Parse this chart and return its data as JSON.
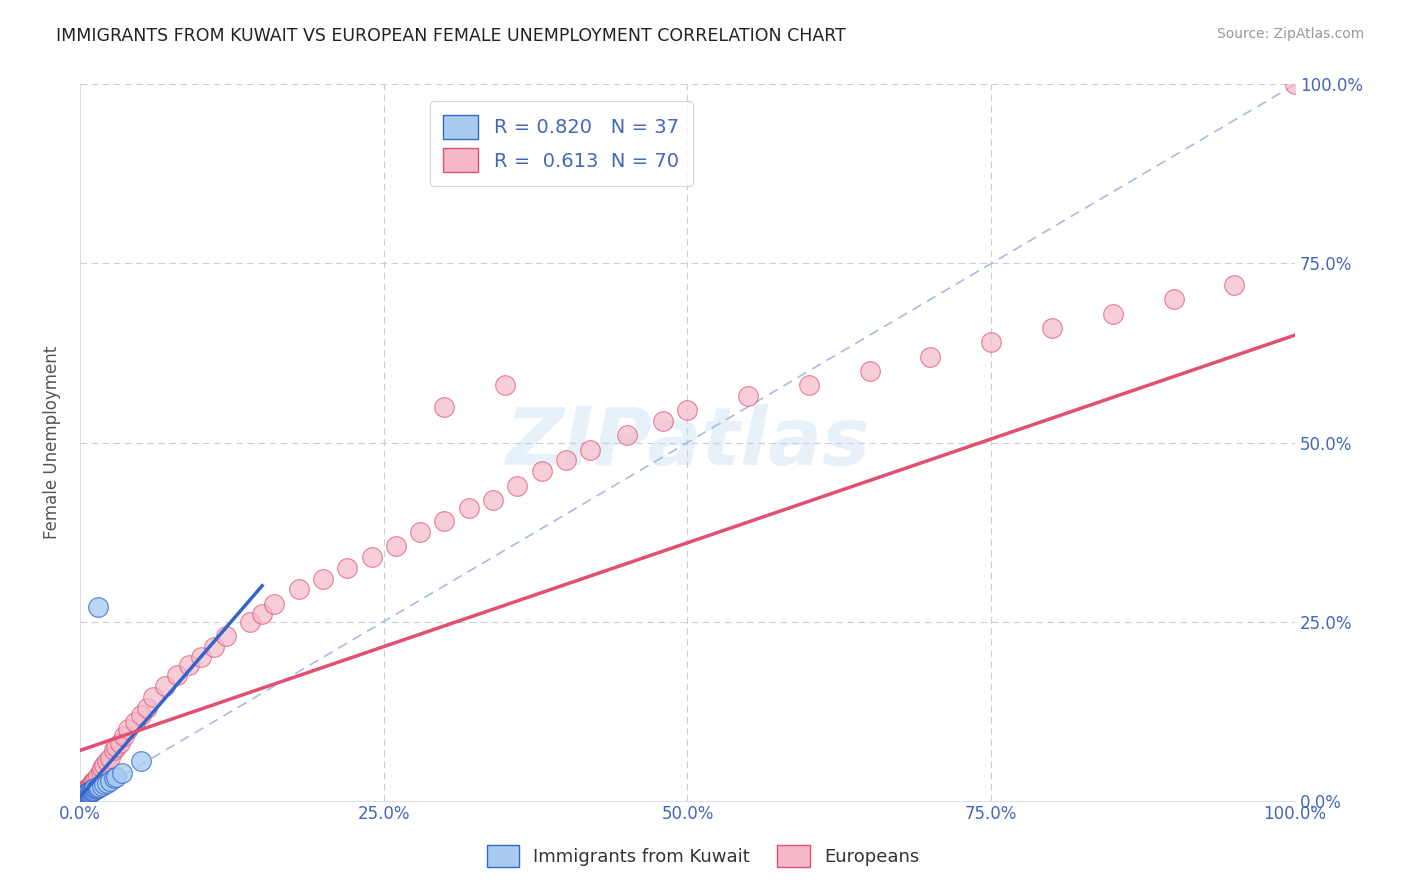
{
  "title": "IMMIGRANTS FROM KUWAIT VS EUROPEAN FEMALE UNEMPLOYMENT CORRELATION CHART",
  "source": "Source: ZipAtlas.com",
  "ylabel": "Female Unemployment",
  "x_tick_labels": [
    "0.0%",
    "25.0%",
    "50.0%",
    "75.0%",
    "100.0%"
  ],
  "y_tick_labels_right": [
    "0.0%",
    "25.0%",
    "50.0%",
    "75.0%",
    "100.0%"
  ],
  "legend_label1": "Immigrants from Kuwait",
  "legend_label2": "Europeans",
  "legend_r1": "R = 0.820",
  "legend_n1": "N = 37",
  "legend_r2": "R =  0.613",
  "legend_n2": "N = 70",
  "color_kuwait": "#A8CCF0",
  "color_europeans": "#F5B8C8",
  "color_trend_kuwait": "#3366CC",
  "color_trend_europeans": "#E05070",
  "color_diag": "#AABBDD",
  "color_grid": "#CCCCDD",
  "color_axis_labels": "#4466BB",
  "color_source": "#999999",
  "xlim": [
    0,
    1
  ],
  "ylim": [
    0,
    1
  ],
  "kuwait_x": [
    0.0005,
    0.001,
    0.001,
    0.0015,
    0.002,
    0.002,
    0.003,
    0.003,
    0.004,
    0.004,
    0.005,
    0.005,
    0.006,
    0.006,
    0.007,
    0.007,
    0.008,
    0.008,
    0.009,
    0.01,
    0.01,
    0.011,
    0.012,
    0.012,
    0.013,
    0.014,
    0.015,
    0.016,
    0.018,
    0.02,
    0.022,
    0.025,
    0.028,
    0.03,
    0.035,
    0.05,
    0.015
  ],
  "kuwait_y": [
    0.003,
    0.004,
    0.005,
    0.006,
    0.005,
    0.007,
    0.006,
    0.008,
    0.007,
    0.009,
    0.008,
    0.01,
    0.009,
    0.011,
    0.01,
    0.012,
    0.011,
    0.013,
    0.012,
    0.013,
    0.015,
    0.014,
    0.015,
    0.017,
    0.016,
    0.018,
    0.017,
    0.019,
    0.021,
    0.023,
    0.025,
    0.028,
    0.031,
    0.033,
    0.038,
    0.055,
    0.27
  ],
  "kuwait_trend_x": [
    0.0,
    0.15
  ],
  "kuwait_trend_y": [
    0.005,
    0.3
  ],
  "europeans_x": [
    0.001,
    0.001,
    0.002,
    0.002,
    0.003,
    0.003,
    0.004,
    0.004,
    0.005,
    0.005,
    0.006,
    0.007,
    0.008,
    0.009,
    0.01,
    0.011,
    0.012,
    0.013,
    0.015,
    0.017,
    0.018,
    0.02,
    0.022,
    0.025,
    0.028,
    0.03,
    0.033,
    0.036,
    0.04,
    0.045,
    0.05,
    0.055,
    0.06,
    0.07,
    0.08,
    0.09,
    0.1,
    0.11,
    0.12,
    0.14,
    0.15,
    0.16,
    0.18,
    0.2,
    0.22,
    0.24,
    0.26,
    0.28,
    0.3,
    0.32,
    0.34,
    0.36,
    0.38,
    0.4,
    0.42,
    0.45,
    0.48,
    0.5,
    0.55,
    0.6,
    0.65,
    0.7,
    0.75,
    0.8,
    0.85,
    0.9,
    0.95,
    1.0,
    0.3,
    0.35
  ],
  "europeans_y": [
    0.005,
    0.008,
    0.007,
    0.01,
    0.009,
    0.012,
    0.011,
    0.014,
    0.013,
    0.016,
    0.015,
    0.018,
    0.02,
    0.022,
    0.024,
    0.026,
    0.028,
    0.03,
    0.035,
    0.04,
    0.045,
    0.05,
    0.055,
    0.06,
    0.07,
    0.075,
    0.08,
    0.09,
    0.1,
    0.11,
    0.12,
    0.13,
    0.145,
    0.16,
    0.175,
    0.19,
    0.2,
    0.215,
    0.23,
    0.25,
    0.26,
    0.275,
    0.295,
    0.31,
    0.325,
    0.34,
    0.355,
    0.375,
    0.39,
    0.408,
    0.42,
    0.44,
    0.46,
    0.475,
    0.49,
    0.51,
    0.53,
    0.545,
    0.565,
    0.58,
    0.6,
    0.62,
    0.64,
    0.66,
    0.68,
    0.7,
    0.72,
    1.0,
    0.55,
    0.58
  ],
  "europeans_trend_x": [
    0.0,
    1.0
  ],
  "europeans_trend_y": [
    0.07,
    0.65
  ]
}
